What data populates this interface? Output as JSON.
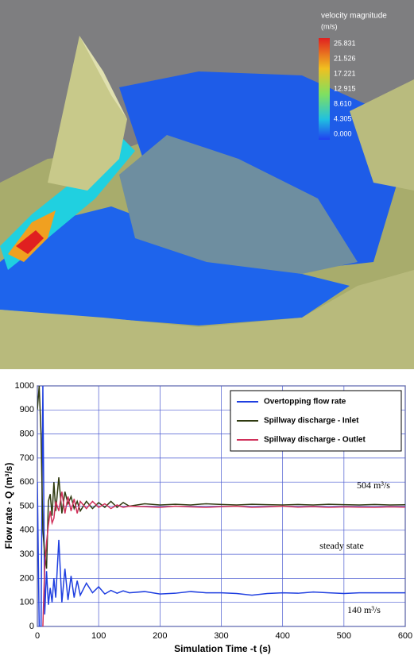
{
  "render": {
    "colorbar_title": "velocity magnitude",
    "colorbar_unit": "(m/s)",
    "colorbar_labels": [
      "25.831",
      "21.526",
      "17.221",
      "12.915",
      "8.610",
      "4.305",
      "0.000"
    ]
  },
  "chart_data": {
    "type": "line",
    "xlabel": "Simulation Time -t (s)",
    "ylabel": "Flow rate - Q (m³/s)",
    "x": [
      0,
      3,
      6,
      9,
      12,
      15,
      18,
      21,
      24,
      27,
      30,
      35,
      40,
      45,
      50,
      55,
      60,
      65,
      70,
      80,
      90,
      100,
      110,
      120,
      130,
      140,
      150,
      175,
      200,
      225,
      250,
      275,
      300,
      325,
      350,
      375,
      400,
      425,
      450,
      475,
      500,
      525,
      550,
      575,
      600
    ],
    "series": [
      {
        "name": "Overtopping flow rate",
        "color": "#1f3fe0",
        "values": [
          600,
          0,
          0,
          1000,
          50,
          230,
          90,
          160,
          100,
          200,
          120,
          360,
          100,
          240,
          110,
          210,
          120,
          190,
          130,
          180,
          140,
          165,
          135,
          150,
          138,
          148,
          140,
          145,
          135,
          138,
          145,
          140,
          140,
          137,
          130,
          137,
          140,
          138,
          143,
          140,
          137,
          140,
          140,
          140,
          140
        ]
      },
      {
        "name": "Spillway discharge - Inlet",
        "color": "#2f3a10",
        "values": [
          900,
          1000,
          800,
          400,
          300,
          240,
          520,
          550,
          460,
          600,
          480,
          620,
          470,
          560,
          510,
          540,
          490,
          520,
          480,
          520,
          490,
          515,
          495,
          520,
          495,
          515,
          500,
          510,
          505,
          508,
          505,
          510,
          507,
          505,
          508,
          506,
          505,
          507,
          505,
          508,
          506,
          505,
          507,
          505,
          506
        ]
      },
      {
        "name": "Spillway discharge - Outlet",
        "color": "#d0305a",
        "values": [
          null,
          null,
          null,
          0,
          250,
          350,
          420,
          480,
          430,
          450,
          520,
          480,
          560,
          470,
          540,
          480,
          530,
          470,
          520,
          490,
          520,
          495,
          510,
          490,
          505,
          495,
          500,
          498,
          495,
          500,
          497,
          495,
          498,
          500,
          495,
          497,
          500,
          496,
          498,
          495,
          497,
          496,
          495,
          497,
          496
        ]
      }
    ],
    "xlim": [
      0,
      600
    ],
    "ylim": [
      0,
      1000
    ],
    "xticks": [
      0,
      100,
      200,
      300,
      400,
      500,
      600
    ],
    "yticks": [
      0,
      100,
      200,
      300,
      400,
      500,
      600,
      700,
      800,
      900,
      1000
    ],
    "grid": true,
    "legend": "upper right",
    "annotations": [
      "504 m³/s",
      "steady state",
      "140 m³/s"
    ]
  }
}
